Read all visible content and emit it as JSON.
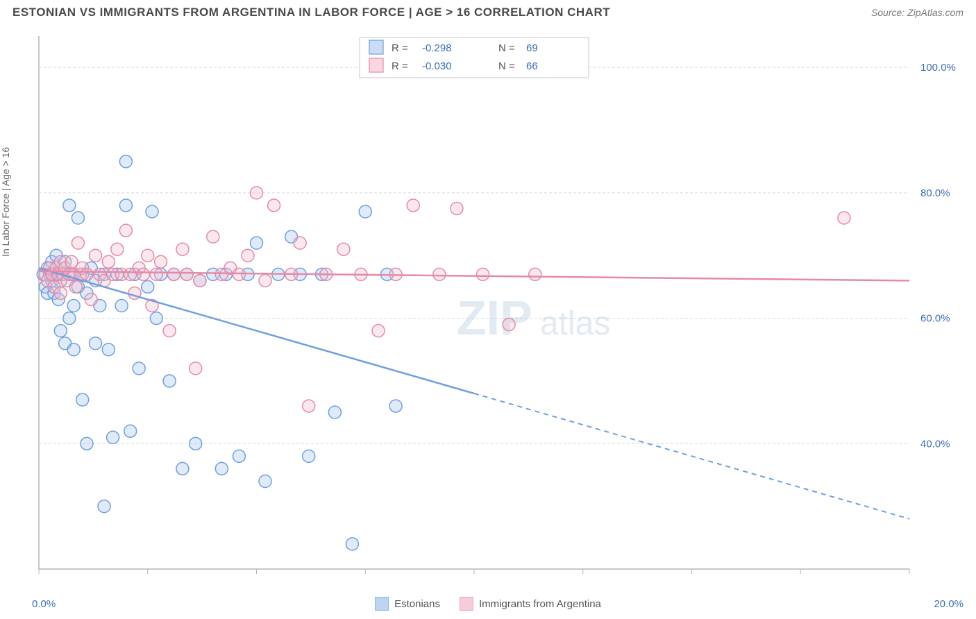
{
  "title": "ESTONIAN VS IMMIGRANTS FROM ARGENTINA IN LABOR FORCE | AGE > 16 CORRELATION CHART",
  "source_label": "Source: ZipAtlas.com",
  "y_axis_label": "In Labor Force | Age > 16",
  "watermark_main": "ZIP",
  "watermark_sub": "atlas",
  "chart": {
    "type": "scatter",
    "background_color": "#ffffff",
    "grid_color": "#d7d7d7",
    "grid_dash": "4,3",
    "axis_color": "#b5b5b5",
    "tick_label_color": "#3b6fb6",
    "tick_font_size": 15,
    "xlim": [
      0,
      20
    ],
    "ylim": [
      20,
      105
    ],
    "x_ticks": [
      0,
      2.5,
      5,
      7.5,
      10,
      12.5,
      15,
      17.5,
      20
    ],
    "x_tick_labels": {
      "0": "0.0%",
      "20": "20.0%"
    },
    "y_ticks": [
      40,
      60,
      80,
      100
    ],
    "y_tick_labels": {
      "40": "40.0%",
      "60": "60.0%",
      "80": "80.0%",
      "100": "100.0%"
    },
    "marker_radius": 9,
    "marker_fill_opacity": 0.35,
    "marker_stroke_width": 1.5,
    "trend_line_width": 2.5,
    "series": [
      {
        "id": "estonians",
        "label": "Estonians",
        "color_stroke": "#6f9fe0",
        "color_fill": "#a7c6ee",
        "r_value": "-0.298",
        "n_value": "69",
        "trend_start": [
          0,
          68
        ],
        "trend_solid_end": [
          10,
          48
        ],
        "trend_dash_end": [
          20,
          28
        ],
        "points": [
          [
            0.1,
            67
          ],
          [
            0.15,
            65
          ],
          [
            0.2,
            68
          ],
          [
            0.2,
            64
          ],
          [
            0.25,
            67
          ],
          [
            0.3,
            66
          ],
          [
            0.3,
            69
          ],
          [
            0.35,
            64
          ],
          [
            0.4,
            67
          ],
          [
            0.4,
            70
          ],
          [
            0.45,
            63
          ],
          [
            0.5,
            66
          ],
          [
            0.5,
            58
          ],
          [
            0.55,
            67
          ],
          [
            0.6,
            56
          ],
          [
            0.6,
            69
          ],
          [
            0.7,
            78
          ],
          [
            0.7,
            60
          ],
          [
            0.75,
            67
          ],
          [
            0.8,
            62
          ],
          [
            0.8,
            55
          ],
          [
            0.9,
            65
          ],
          [
            0.9,
            76
          ],
          [
            1.0,
            67
          ],
          [
            1.0,
            47
          ],
          [
            1.1,
            64
          ],
          [
            1.1,
            40
          ],
          [
            1.2,
            68
          ],
          [
            1.3,
            56
          ],
          [
            1.3,
            66
          ],
          [
            1.4,
            62
          ],
          [
            1.5,
            30
          ],
          [
            1.5,
            67
          ],
          [
            1.6,
            55
          ],
          [
            1.7,
            41
          ],
          [
            1.8,
            67
          ],
          [
            1.9,
            62
          ],
          [
            2.0,
            78
          ],
          [
            2.0,
            85
          ],
          [
            2.1,
            42
          ],
          [
            2.2,
            67
          ],
          [
            2.3,
            52
          ],
          [
            2.5,
            65
          ],
          [
            2.6,
            77
          ],
          [
            2.7,
            60
          ],
          [
            2.8,
            67
          ],
          [
            3.0,
            50
          ],
          [
            3.1,
            67
          ],
          [
            3.3,
            36
          ],
          [
            3.4,
            67
          ],
          [
            3.6,
            40
          ],
          [
            3.7,
            66
          ],
          [
            4.0,
            67
          ],
          [
            4.2,
            36
          ],
          [
            4.3,
            67
          ],
          [
            4.6,
            38
          ],
          [
            4.8,
            67
          ],
          [
            5.0,
            72
          ],
          [
            5.2,
            34
          ],
          [
            5.5,
            67
          ],
          [
            5.8,
            73
          ],
          [
            6.0,
            67
          ],
          [
            6.2,
            38
          ],
          [
            6.5,
            67
          ],
          [
            6.8,
            45
          ],
          [
            7.2,
            24
          ],
          [
            7.5,
            77
          ],
          [
            8.0,
            67
          ],
          [
            8.2,
            46
          ]
        ]
      },
      {
        "id": "immigrants_argentina",
        "label": "Immigrants from Argentina",
        "color_stroke": "#e48aa8",
        "color_fill": "#f4bccf",
        "r_value": "-0.030",
        "n_value": "66",
        "trend_start": [
          0,
          67.5
        ],
        "trend_solid_end": [
          20,
          66
        ],
        "trend_dash_end": null,
        "points": [
          [
            0.15,
            67
          ],
          [
            0.2,
            66
          ],
          [
            0.25,
            68
          ],
          [
            0.3,
            67
          ],
          [
            0.35,
            65
          ],
          [
            0.4,
            68
          ],
          [
            0.45,
            67
          ],
          [
            0.5,
            69
          ],
          [
            0.5,
            64
          ],
          [
            0.55,
            67
          ],
          [
            0.6,
            68
          ],
          [
            0.65,
            66
          ],
          [
            0.7,
            67
          ],
          [
            0.75,
            69
          ],
          [
            0.8,
            67
          ],
          [
            0.85,
            65
          ],
          [
            0.9,
            72
          ],
          [
            0.95,
            67
          ],
          [
            1.0,
            68
          ],
          [
            1.1,
            67
          ],
          [
            1.2,
            63
          ],
          [
            1.3,
            70
          ],
          [
            1.4,
            67
          ],
          [
            1.5,
            66
          ],
          [
            1.6,
            69
          ],
          [
            1.7,
            67
          ],
          [
            1.8,
            71
          ],
          [
            1.9,
            67
          ],
          [
            2.0,
            74
          ],
          [
            2.1,
            67
          ],
          [
            2.2,
            64
          ],
          [
            2.3,
            68
          ],
          [
            2.4,
            67
          ],
          [
            2.5,
            70
          ],
          [
            2.6,
            62
          ],
          [
            2.7,
            67
          ],
          [
            2.8,
            69
          ],
          [
            3.0,
            58
          ],
          [
            3.1,
            67
          ],
          [
            3.3,
            71
          ],
          [
            3.4,
            67
          ],
          [
            3.6,
            52
          ],
          [
            3.7,
            66
          ],
          [
            4.0,
            73
          ],
          [
            4.2,
            67
          ],
          [
            4.4,
            68
          ],
          [
            4.6,
            67
          ],
          [
            4.8,
            70
          ],
          [
            5.0,
            80
          ],
          [
            5.2,
            66
          ],
          [
            5.4,
            78
          ],
          [
            5.8,
            67
          ],
          [
            6.0,
            72
          ],
          [
            6.2,
            46
          ],
          [
            6.6,
            67
          ],
          [
            7.0,
            71
          ],
          [
            7.4,
            67
          ],
          [
            7.8,
            58
          ],
          [
            8.2,
            67
          ],
          [
            8.6,
            78
          ],
          [
            9.2,
            67
          ],
          [
            9.6,
            77.5
          ],
          [
            10.2,
            67
          ],
          [
            10.8,
            59
          ],
          [
            11.4,
            67
          ],
          [
            18.5,
            76
          ]
        ]
      }
    ]
  },
  "top_legend": {
    "border_color": "#c8c8c8",
    "r_prefix": "R =",
    "n_prefix": "N ="
  },
  "bottom_legend": {
    "series_refs": [
      "estonians",
      "immigrants_argentina"
    ]
  }
}
